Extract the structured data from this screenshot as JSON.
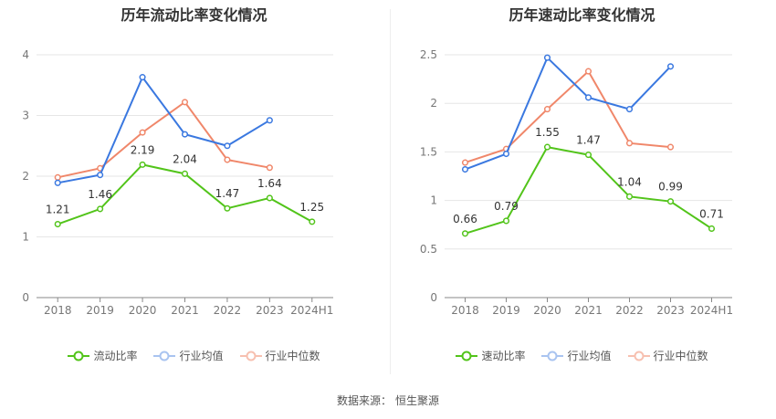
{
  "source_label": "数据来源：",
  "source_name": "恒生聚源",
  "chart_data": [
    {
      "type": "line",
      "title": "历年流动比率变化情况",
      "categories": [
        "2018",
        "2019",
        "2020",
        "2021",
        "2022",
        "2023",
        "2024H1"
      ],
      "ylim": [
        0,
        4
      ],
      "yticks": [
        0,
        1,
        2,
        3,
        4
      ],
      "ytick_labels": [
        "0",
        "1",
        "2",
        "3",
        "4"
      ],
      "grid": true,
      "legend_position": "bottom",
      "series": [
        {
          "name": "流动比率",
          "color": "#52c41a",
          "values": [
            1.21,
            1.46,
            2.19,
            2.04,
            1.47,
            1.64,
            1.25
          ],
          "labels": [
            "1.21",
            "1.46",
            "2.19",
            "2.04",
            "1.47",
            "1.64",
            "1.25"
          ]
        },
        {
          "name": "行业均值",
          "color": "#3a78e0",
          "values": [
            1.89,
            2.02,
            3.63,
            2.69,
            2.5,
            2.92,
            null
          ]
        },
        {
          "name": "行业中位数",
          "color": "#f0876a",
          "values": [
            1.98,
            2.13,
            2.72,
            3.22,
            2.27,
            2.14,
            null
          ]
        }
      ]
    },
    {
      "type": "line",
      "title": "历年速动比率变化情况",
      "categories": [
        "2018",
        "2019",
        "2020",
        "2021",
        "2022",
        "2023",
        "2024H1"
      ],
      "ylim": [
        0,
        2.5
      ],
      "yticks": [
        0,
        0.5,
        1,
        1.5,
        2,
        2.5
      ],
      "ytick_labels": [
        "0",
        "0.5",
        "1",
        "1.5",
        "2",
        "2.5"
      ],
      "grid": true,
      "legend_position": "bottom",
      "series": [
        {
          "name": "速动比率",
          "color": "#52c41a",
          "values": [
            0.66,
            0.79,
            1.55,
            1.47,
            1.04,
            0.99,
            0.71
          ],
          "labels": [
            "0.66",
            "0.79",
            "1.55",
            "1.47",
            "1.04",
            "0.99",
            "0.71"
          ]
        },
        {
          "name": "行业均值",
          "color": "#3a78e0",
          "values": [
            1.32,
            1.48,
            2.47,
            2.06,
            1.94,
            2.38,
            null
          ]
        },
        {
          "name": "行业中位数",
          "color": "#f0876a",
          "values": [
            1.39,
            1.53,
            1.94,
            2.33,
            1.59,
            1.55,
            null
          ]
        }
      ]
    }
  ]
}
